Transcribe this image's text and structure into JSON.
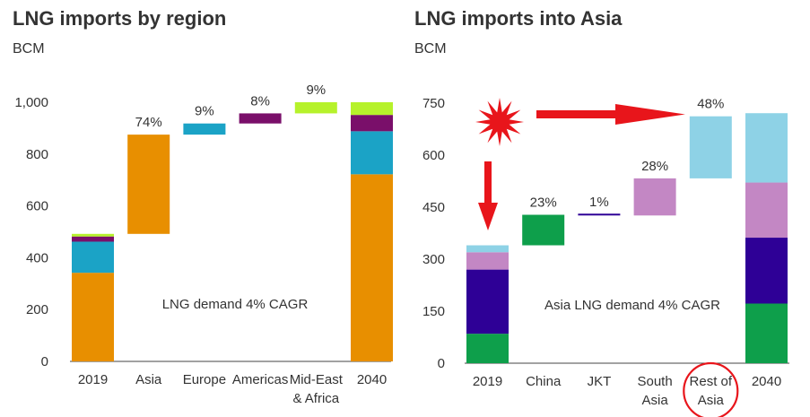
{
  "chart_data": [
    {
      "type": "bar",
      "title": "LNG imports by region",
      "ylabel": "BCM",
      "ylim": [
        0,
        1000
      ],
      "yticks": [
        "0",
        "200",
        "400",
        "600",
        "800",
        "1,000"
      ],
      "ytick_values": [
        0,
        200,
        400,
        600,
        800,
        1000
      ],
      "annotation": "LNG demand 4% CAGR",
      "segment_colors": {
        "Asia": "#E88F00",
        "Europe": "#1BA3C6",
        "Americas": "#7A0F6A",
        "Mid-East & Africa": "#B6F22B"
      },
      "bars": [
        {
          "category": "2019",
          "kind": "stack",
          "label": "",
          "segments": [
            {
              "color": "#E88F00",
              "from": 0,
              "to": 342
            },
            {
              "color": "#1BA3C6",
              "from": 342,
              "to": 462
            },
            {
              "color": "#7A0F6A",
              "from": 462,
              "to": 482
            },
            {
              "color": "#B6F22B",
              "from": 482,
              "to": 492
            }
          ]
        },
        {
          "category": "Asia",
          "kind": "float",
          "label": "74%",
          "segments": [
            {
              "color": "#E88F00",
              "from": 492,
              "to": 875
            }
          ]
        },
        {
          "category": "Europe",
          "kind": "float",
          "label": "9%",
          "segments": [
            {
              "color": "#1BA3C6",
              "from": 875,
              "to": 918
            }
          ]
        },
        {
          "category": "Americas",
          "kind": "float",
          "label": "8%",
          "segments": [
            {
              "color": "#7A0F6A",
              "from": 918,
              "to": 957
            }
          ]
        },
        {
          "category": "Mid-East\n& Africa",
          "kind": "float",
          "label": "9%",
          "segments": [
            {
              "color": "#B6F22B",
              "from": 957,
              "to": 1000
            }
          ]
        },
        {
          "category": "2040",
          "kind": "stack",
          "label": "",
          "segments": [
            {
              "color": "#E88F00",
              "from": 0,
              "to": 722
            },
            {
              "color": "#1BA3C6",
              "from": 722,
              "to": 888
            },
            {
              "color": "#7A0F6A",
              "from": 888,
              "to": 951
            },
            {
              "color": "#B6F22B",
              "from": 951,
              "to": 1000
            }
          ]
        }
      ]
    },
    {
      "type": "bar",
      "title": "LNG imports into Asia",
      "ylabel": "BCM",
      "ylim": [
        0,
        750
      ],
      "yticks": [
        "0",
        "150",
        "300",
        "450",
        "600",
        "750"
      ],
      "ytick_values": [
        0,
        150,
        300,
        450,
        600,
        750
      ],
      "annotation": "Asia LNG demand 4% CAGR",
      "segment_colors": {
        "China": "#0E9F4B",
        "JKT": "#2E0096",
        "South Asia": "#C387C4",
        "Rest of Asia": "#8ED2E6"
      },
      "bars": [
        {
          "category": "2019",
          "kind": "stack",
          "label": "",
          "segments": [
            {
              "color": "#0E9F4B",
              "from": 0,
              "to": 85
            },
            {
              "color": "#2E0096",
              "from": 85,
              "to": 270
            },
            {
              "color": "#C387C4",
              "from": 270,
              "to": 320
            },
            {
              "color": "#8ED2E6",
              "from": 320,
              "to": 340
            }
          ]
        },
        {
          "category": "China",
          "kind": "float",
          "label": "23%",
          "segments": [
            {
              "color": "#0E9F4B",
              "from": 340,
              "to": 428
            }
          ]
        },
        {
          "category": "JKT",
          "kind": "float",
          "label": "1%",
          "segments": [
            {
              "color": "#2E0096",
              "from": 426,
              "to": 429
            }
          ]
        },
        {
          "category": "South\nAsia",
          "kind": "float",
          "label": "28%",
          "segments": [
            {
              "color": "#C387C4",
              "from": 426,
              "to": 533
            }
          ]
        },
        {
          "category": "Rest of\nAsia",
          "kind": "float",
          "label": "48%",
          "segments": [
            {
              "color": "#8ED2E6",
              "from": 533,
              "to": 712
            }
          ]
        },
        {
          "category": "2040",
          "kind": "stack",
          "label": "",
          "segments": [
            {
              "color": "#0E9F4B",
              "from": 0,
              "to": 172
            },
            {
              "color": "#2E0096",
              "from": 172,
              "to": 362
            },
            {
              "color": "#C387C4",
              "from": 362,
              "to": 521
            },
            {
              "color": "#8ED2E6",
              "from": 521,
              "to": 721
            }
          ]
        }
      ],
      "highlight": {
        "category": "Rest of\nAsia",
        "color": "#E8151B"
      }
    }
  ],
  "colors": {
    "arrow": "#E8151B",
    "burst": "#E8151B",
    "axis": "#444444",
    "grid": "#E6E6E6"
  },
  "icons": [
    "starburst-icon",
    "arrow-right-icon",
    "arrow-down-icon"
  ]
}
